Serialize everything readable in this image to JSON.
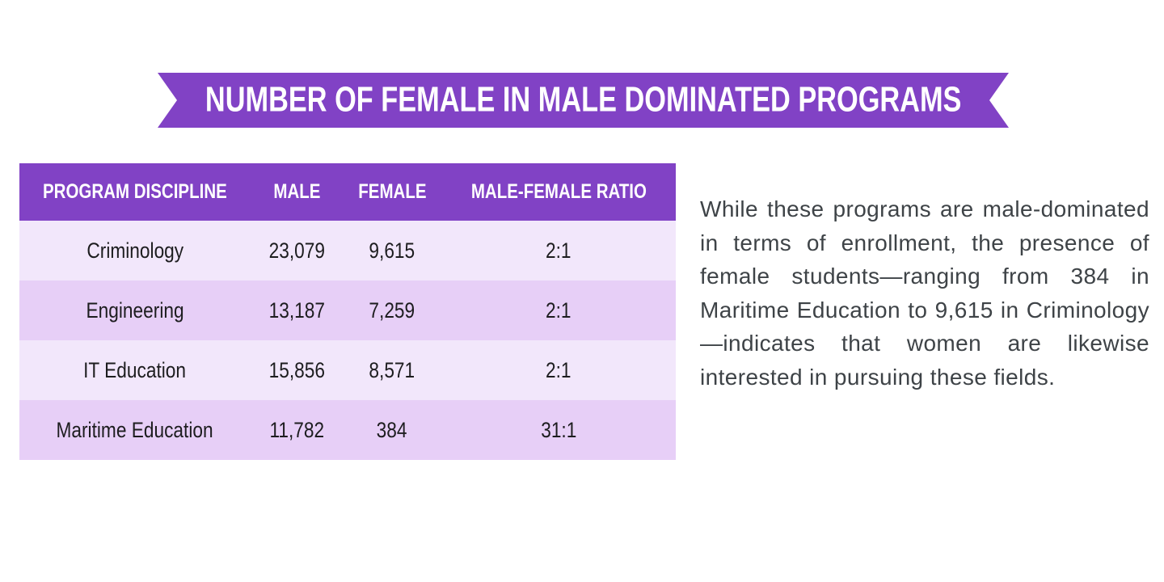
{
  "banner": {
    "title": "NUMBER OF FEMALE IN MALE DOMINATED PROGRAMS"
  },
  "table": {
    "headers": [
      "PROGRAM DISCIPLINE",
      "MALE",
      "FEMALE",
      "MALE-FEMALE RATIO"
    ],
    "rows": [
      [
        "Criminology",
        "23,079",
        "9,615",
        "2:1"
      ],
      [
        "Engineering",
        "13,187",
        "7,259",
        "2:1"
      ],
      [
        "IT Education",
        "15,856",
        "8,571",
        "2:1"
      ],
      [
        "Maritime Education",
        "11,782",
        "384",
        "31:1"
      ]
    ]
  },
  "commentary": {
    "text": "While these programs are male-dominated in terms of enrollment, the presence of female students—ranging from 384 in Maritime Education to 9,615 in Criminology—indicates that women are likewise interested in pursuing these fields."
  },
  "colors": {
    "accent_purple": "#8142C5",
    "row_light": "#F2E7FB",
    "row_dark": "#E7CFF7",
    "table_text": "#1D1D1F",
    "body_text": "#3E4347"
  },
  "chart_data": {
    "type": "table",
    "title": "NUMBER OF FEMALE IN MALE DOMINATED PROGRAMS",
    "columns": [
      "PROGRAM DISCIPLINE",
      "MALE",
      "FEMALE",
      "MALE-FEMALE RATIO"
    ],
    "rows": [
      [
        "Criminology",
        23079,
        9615,
        "2:1"
      ],
      [
        "Engineering",
        13187,
        7259,
        "2:1"
      ],
      [
        "IT Education",
        15856,
        8571,
        "2:1"
      ],
      [
        "Maritime Education",
        11782,
        384,
        "31:1"
      ]
    ],
    "notes": "Female enrollment ranges from 384 (Maritime Education) to 9,615 (Criminology)"
  }
}
